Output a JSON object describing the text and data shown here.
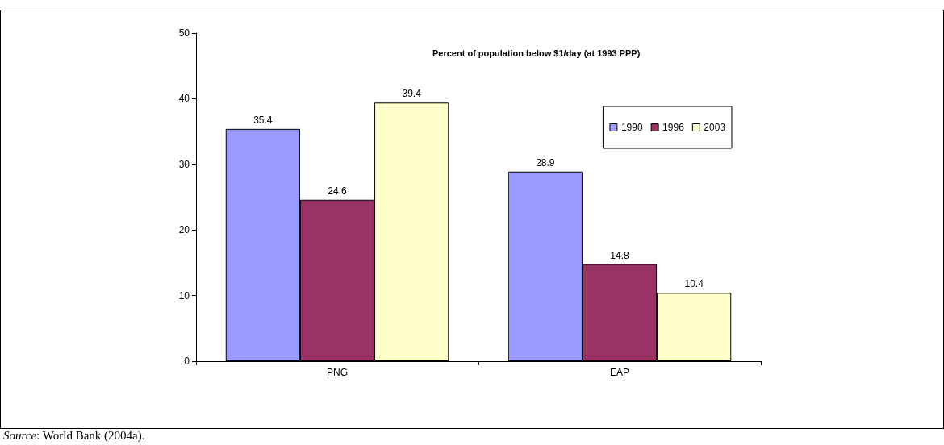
{
  "chart_data": {
    "type": "bar",
    "title": "Percent of population below $1/day (at 1993 PPP)",
    "categories": [
      "PNG",
      "EAP"
    ],
    "series": [
      {
        "name": "1990",
        "color": "#9999ff",
        "values": [
          35.4,
          28.9
        ]
      },
      {
        "name": "1996",
        "color": "#993366",
        "values": [
          24.6,
          14.8
        ]
      },
      {
        "name": "2003",
        "color": "#ffffcc",
        "values": [
          39.4,
          10.4
        ]
      }
    ],
    "ylim": [
      0,
      50
    ],
    "yticks": [
      0,
      10,
      20,
      30,
      40,
      50
    ],
    "grid": false,
    "legend": "top right",
    "data_labels": true,
    "annotations": [
      "Source: World Bank (2004a)."
    ]
  }
}
